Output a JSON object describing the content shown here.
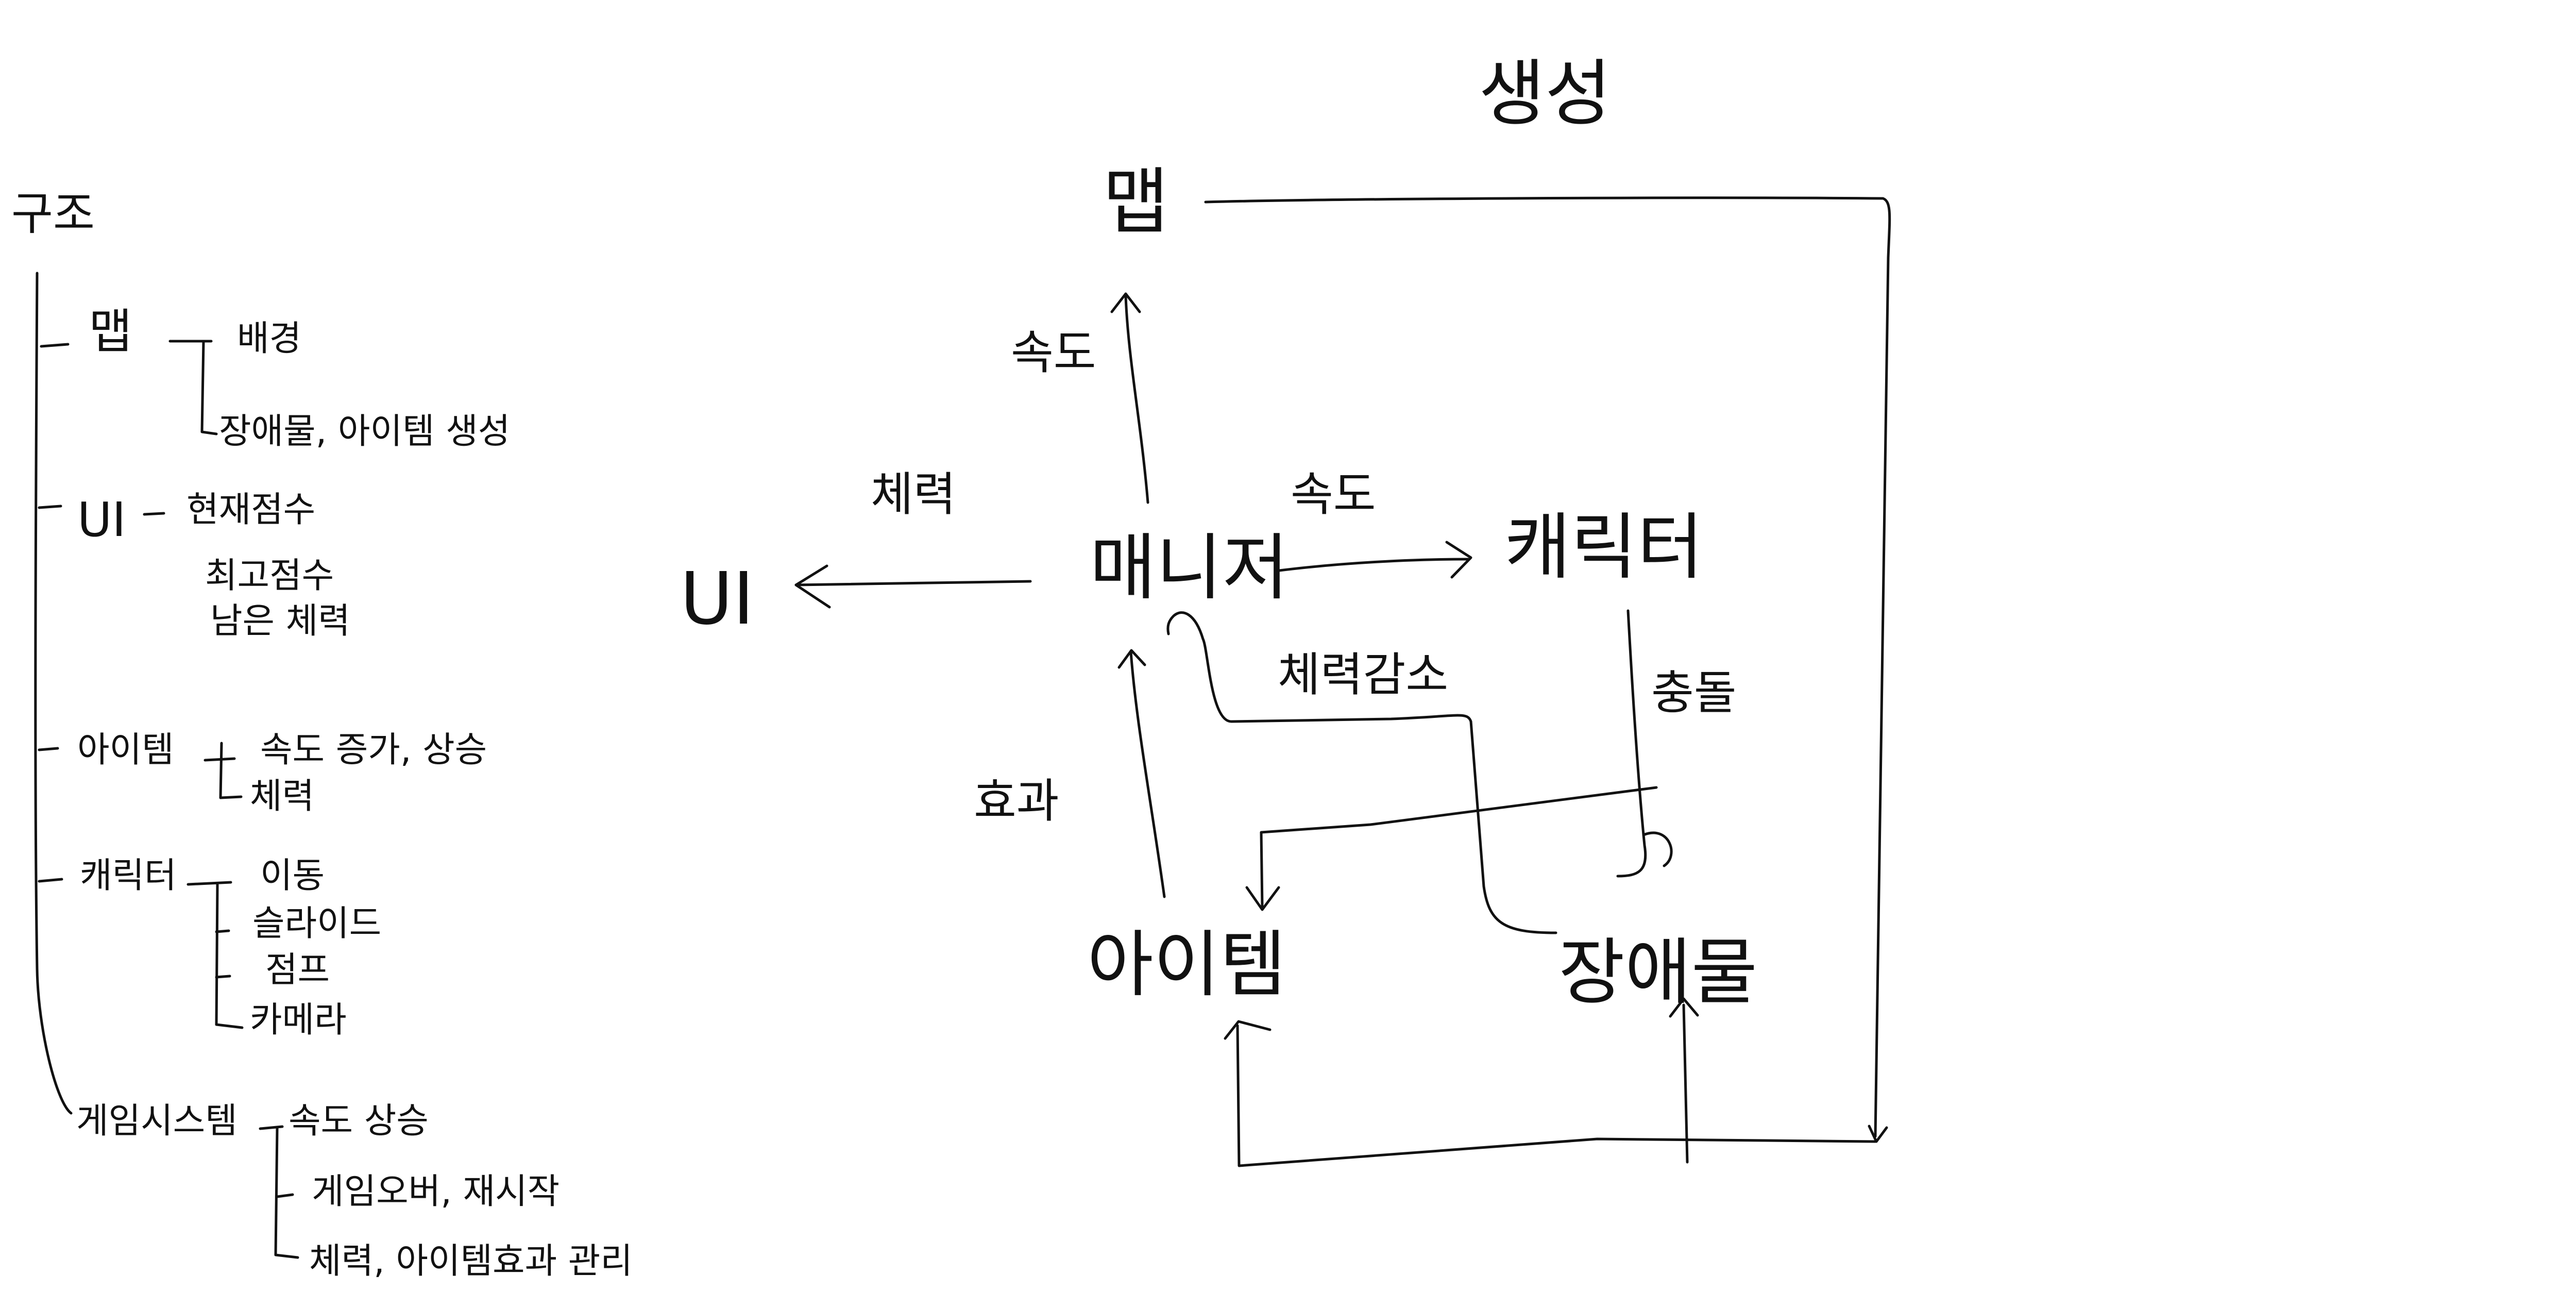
{
  "outline": {
    "root": "구조",
    "branches": [
      {
        "label": "맵",
        "children": [
          "배경",
          "장애물, 아이템 생성"
        ]
      },
      {
        "label": "UI",
        "children": [
          "현재점수",
          "최고점수",
          "남은 체력"
        ]
      },
      {
        "label": "아이템",
        "children": [
          "속도 증가, 상승",
          "체력"
        ]
      },
      {
        "label": "캐릭터",
        "children": [
          "이동",
          "슬라이드",
          "점프",
          "카메라"
        ]
      },
      {
        "label": "게임시스템",
        "children": [
          "속도 상승",
          "게임오버, 재시작",
          "체력, 아이템효과 관리"
        ]
      }
    ]
  },
  "flow": {
    "title": "생성",
    "nodes": {
      "map": "맵",
      "manager": "매니저",
      "ui": "UI",
      "character": "캐릭터",
      "item": "아이템",
      "obstacle": "장애물"
    },
    "edge_labels": {
      "manager_to_map": "속도",
      "manager_to_ui": "체력",
      "manager_to_character": "속도",
      "obstacle_to_manager": "체력감소",
      "item_to_manager": "효과",
      "character_collision": "충돌"
    }
  }
}
